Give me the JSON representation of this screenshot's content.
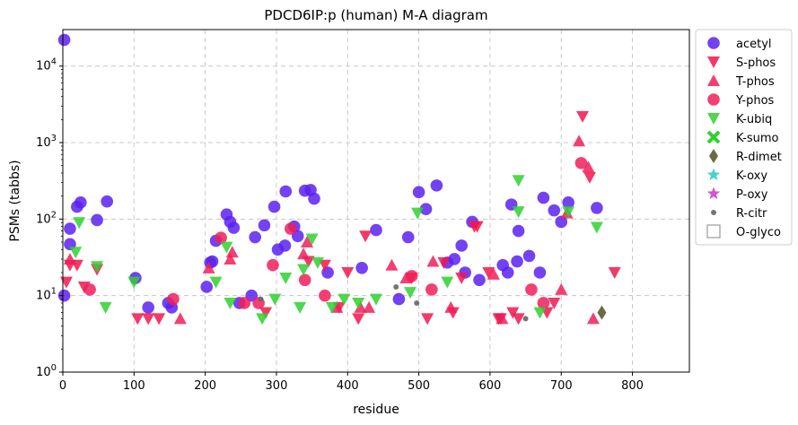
{
  "chart_data": {
    "type": "scatter",
    "title": "PDCD6IP:p (human) M-A diagram",
    "xlabel": "residue",
    "ylabel": "PSMs (tabbs)",
    "xlim": [
      0,
      880
    ],
    "ylim": [
      1,
      30000
    ],
    "yscale": "log",
    "x_ticks": [
      "0",
      "100",
      "200",
      "300",
      "400",
      "500",
      "600",
      "700",
      "800"
    ],
    "y_ticks": [
      "10^0",
      "10^1",
      "10^2",
      "10^3",
      "10^4"
    ],
    "grid": true,
    "legend_position": "outside-right",
    "series": [
      {
        "name": "acetyl",
        "marker": "circle",
        "color": "#5b21f0",
        "points": [
          [
            2,
            22000
          ],
          [
            2,
            10
          ],
          [
            10,
            75
          ],
          [
            10,
            47
          ],
          [
            20,
            145
          ],
          [
            25,
            165
          ],
          [
            48,
            97
          ],
          [
            62,
            170
          ],
          [
            102,
            17
          ],
          [
            120,
            7
          ],
          [
            148,
            8
          ],
          [
            153,
            7
          ],
          [
            202,
            13
          ],
          [
            207,
            27
          ],
          [
            210,
            28
          ],
          [
            215,
            52
          ],
          [
            230,
            115
          ],
          [
            235,
            92
          ],
          [
            240,
            77
          ],
          [
            248,
            8
          ],
          [
            265,
            10
          ],
          [
            270,
            58
          ],
          [
            283,
            83
          ],
          [
            297,
            145
          ],
          [
            302,
            40
          ],
          [
            312,
            45
          ],
          [
            313,
            230
          ],
          [
            325,
            80
          ],
          [
            330,
            60
          ],
          [
            340,
            235
          ],
          [
            348,
            240
          ],
          [
            353,
            185
          ],
          [
            372,
            20
          ],
          [
            420,
            23
          ],
          [
            440,
            72
          ],
          [
            472,
            9
          ],
          [
            485,
            58
          ],
          [
            500,
            225
          ],
          [
            510,
            135
          ],
          [
            525,
            275
          ],
          [
            540,
            27
          ],
          [
            550,
            30
          ],
          [
            560,
            45
          ],
          [
            565,
            20
          ],
          [
            575,
            92
          ],
          [
            585,
            16
          ],
          [
            618,
            25
          ],
          [
            625,
            20
          ],
          [
            630,
            155
          ],
          [
            638,
            28
          ],
          [
            640,
            70
          ],
          [
            655,
            33
          ],
          [
            670,
            20
          ],
          [
            675,
            190
          ],
          [
            690,
            130
          ],
          [
            700,
            92
          ],
          [
            710,
            165
          ],
          [
            750,
            140
          ]
        ]
      },
      {
        "name": "S-phos",
        "marker": "triangle-down",
        "color": "#f0164e",
        "points": [
          [
            5,
            15
          ],
          [
            10,
            25
          ],
          [
            20,
            25
          ],
          [
            30,
            13
          ],
          [
            48,
            22
          ],
          [
            105,
            5
          ],
          [
            120,
            5
          ],
          [
            135,
            5
          ],
          [
            285,
            6
          ],
          [
            345,
            28
          ],
          [
            368,
            25
          ],
          [
            388,
            7
          ],
          [
            400,
            20
          ],
          [
            415,
            5
          ],
          [
            425,
            60
          ],
          [
            490,
            17
          ],
          [
            512,
            5
          ],
          [
            535,
            27
          ],
          [
            548,
            6
          ],
          [
            560,
            17
          ],
          [
            578,
            80
          ],
          [
            582,
            80
          ],
          [
            598,
            20
          ],
          [
            612,
            5
          ],
          [
            615,
            5
          ],
          [
            632,
            6
          ],
          [
            640,
            5
          ],
          [
            680,
            6
          ],
          [
            690,
            8
          ],
          [
            730,
            2200
          ],
          [
            740,
            350
          ],
          [
            775,
            20
          ]
        ]
      },
      {
        "name": "T-phos",
        "marker": "triangle-up",
        "color": "#f01e5a",
        "points": [
          [
            10,
            30
          ],
          [
            165,
            5
          ],
          [
            205,
            23
          ],
          [
            235,
            30
          ],
          [
            238,
            37
          ],
          [
            338,
            35
          ],
          [
            343,
            50
          ],
          [
            385,
            7
          ],
          [
            418,
            7
          ],
          [
            430,
            7
          ],
          [
            462,
            25
          ],
          [
            482,
            17
          ],
          [
            520,
            28
          ],
          [
            545,
            7
          ],
          [
            605,
            19
          ],
          [
            617,
            5
          ],
          [
            700,
            12
          ],
          [
            708,
            120
          ],
          [
            725,
            1050
          ],
          [
            738,
            480
          ],
          [
            745,
            5
          ]
        ]
      },
      {
        "name": "Y-phos",
        "marker": "circle",
        "color": "#f01e5a",
        "points": [
          [
            38,
            12
          ],
          [
            155,
            9
          ],
          [
            222,
            57
          ],
          [
            255,
            8
          ],
          [
            275,
            8
          ],
          [
            295,
            25
          ],
          [
            320,
            75
          ],
          [
            340,
            16
          ],
          [
            368,
            10
          ],
          [
            490,
            18
          ],
          [
            518,
            12
          ],
          [
            658,
            12
          ],
          [
            675,
            8
          ],
          [
            728,
            540
          ]
        ]
      },
      {
        "name": "K-ubiq",
        "marker": "triangle-down",
        "color": "#30d030",
        "points": [
          [
            18,
            37
          ],
          [
            23,
            90
          ],
          [
            48,
            24
          ],
          [
            60,
            7
          ],
          [
            100,
            15
          ],
          [
            215,
            15
          ],
          [
            230,
            43
          ],
          [
            235,
            8
          ],
          [
            280,
            5
          ],
          [
            298,
            9
          ],
          [
            313,
            17
          ],
          [
            333,
            7
          ],
          [
            338,
            22
          ],
          [
            350,
            55
          ],
          [
            358,
            27
          ],
          [
            378,
            7
          ],
          [
            395,
            9
          ],
          [
            415,
            8
          ],
          [
            440,
            9
          ],
          [
            488,
            11
          ],
          [
            498,
            120
          ],
          [
            540,
            15
          ],
          [
            640,
            320
          ],
          [
            640,
            125
          ],
          [
            670,
            6
          ],
          [
            710,
            125
          ],
          [
            750,
            78
          ]
        ]
      },
      {
        "name": "K-sumo",
        "marker": "x",
        "color": "#30d030",
        "points": []
      },
      {
        "name": "R-dimet",
        "marker": "diamond",
        "color": "#5a5a32",
        "points": [
          [
            757,
            6
          ]
        ]
      },
      {
        "name": "K-oxy",
        "marker": "star",
        "color": "#33cccc",
        "points": []
      },
      {
        "name": "P-oxy",
        "marker": "star",
        "color": "#cc44cc",
        "points": []
      },
      {
        "name": "R-citr",
        "marker": "small-dot",
        "color": "#666666",
        "points": [
          [
            278,
            9
          ],
          [
            468,
            13
          ],
          [
            497,
            8
          ],
          [
            650,
            5
          ]
        ]
      },
      {
        "name": "O-glyco",
        "marker": "open-square",
        "color": "#999999",
        "points": []
      }
    ]
  }
}
